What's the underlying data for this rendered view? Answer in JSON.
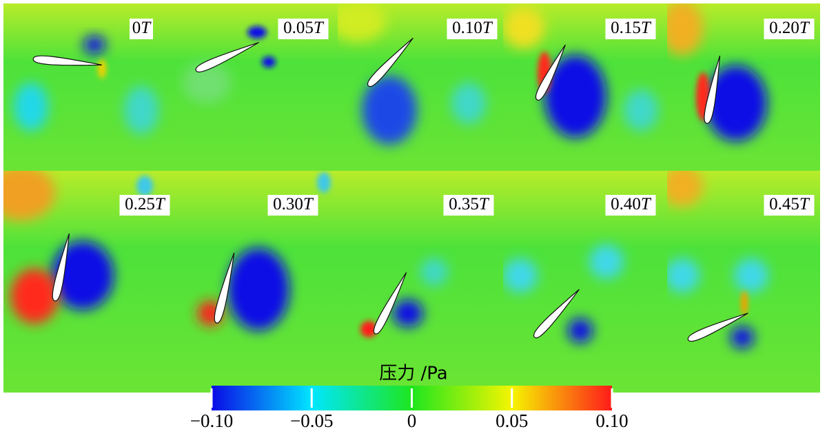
{
  "figure": {
    "panels": [
      "0T",
      "0.05T",
      "0.10T",
      "0.15T",
      "0.20T",
      "0.25T",
      "0.30T",
      "0.35T",
      "0.40T",
      "0.45T"
    ],
    "colorbar": {
      "title": "压力 /Pa",
      "lim": [
        -0.1,
        0.1
      ],
      "ticks": [
        {
          "value": -0.1,
          "label": "−0.10"
        },
        {
          "value": -0.05,
          "label": "−0.05"
        },
        0,
        {
          "value": 0.05,
          "label": "0.05"
        },
        {
          "value": 0.1,
          "label": "0.10"
        }
      ],
      "colormap": [
        "#0a0ae6",
        "#00e6ff",
        "#1ee61e",
        "#f5f500",
        "#ff1a1a"
      ]
    }
  }
}
